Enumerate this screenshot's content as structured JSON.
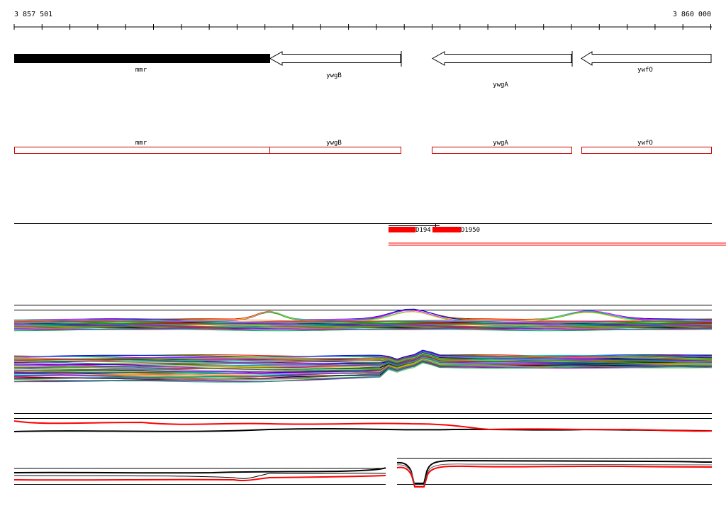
{
  "ruler": {
    "start_label": "3 857 501",
    "end_label": "3 860 000"
  },
  "colors": {
    "gene_fill_primary": "#000000",
    "gene_outline": "#000000",
    "annotation_box": "#cc0000",
    "feature_block": "#ff0000",
    "track_line": "#000000",
    "signal_red": "#ff0000"
  },
  "genes": [
    {
      "name": "mmr",
      "strand": "+",
      "filled": true
    },
    {
      "name": "ywgB",
      "strand": "-",
      "filled": false
    },
    {
      "name": "ywgA",
      "strand": "-",
      "filled": false
    },
    {
      "name": "ywfO",
      "strand": "-",
      "filled": false
    }
  ],
  "annotations": [
    {
      "name": "mmr"
    },
    {
      "name": "ywgB"
    },
    {
      "name": "ywgA"
    },
    {
      "name": "ywfO"
    }
  ],
  "features": [
    {
      "label": "D194"
    },
    {
      "label": "D1950"
    }
  ]
}
